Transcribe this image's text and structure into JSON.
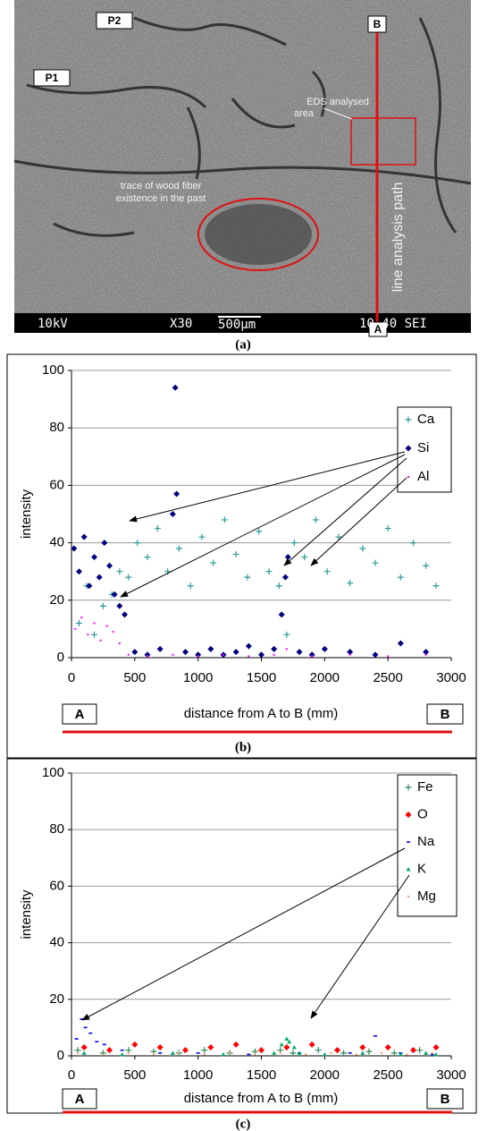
{
  "panel_a": {
    "point_labels": [
      "P2",
      "P1",
      "B",
      "A"
    ],
    "eds_label": [
      "EDS analysed",
      "area"
    ],
    "trace_label": [
      "trace of wood fiber",
      "existence in the past"
    ],
    "path_label": "line analysis path",
    "info_bar": [
      "10kV",
      "X30",
      "500µm",
      "10 40 SEI"
    ],
    "caption": "(a)"
  },
  "chart_data": [
    {
      "type": "scatter",
      "caption": "(b)",
      "xlabel": "distance from A to B (mm)",
      "ylabel": "intensity",
      "endpoint_labels": [
        "A",
        "B"
      ],
      "xlim": [
        0,
        3000
      ],
      "xticks": [
        0,
        500,
        1000,
        1500,
        2000,
        2500,
        3000
      ],
      "ylim": [
        0,
        100
      ],
      "yticks": [
        0,
        20,
        40,
        60,
        80,
        100
      ],
      "grid": true,
      "legend": "upper right",
      "series": [
        {
          "name": "Ca",
          "color": "#2e9a9a",
          "marker": "plus",
          "x": [
            60,
            120,
            180,
            250,
            320,
            380,
            450,
            520,
            600,
            680,
            760,
            850,
            940,
            1030,
            1120,
            1210,
            1300,
            1390,
            1480,
            1560,
            1640,
            1700,
            1760,
            1840,
            1930,
            2020,
            2110,
            2200,
            2300,
            2400,
            2500,
            2600,
            2700,
            2800,
            2880
          ],
          "values": [
            12,
            25,
            8,
            18,
            22,
            30,
            28,
            40,
            35,
            45,
            30,
            38,
            25,
            42,
            33,
            48,
            36,
            28,
            44,
            30,
            25,
            8,
            40,
            35,
            48,
            30,
            42,
            26,
            38,
            33,
            45,
            28,
            40,
            32,
            25
          ]
        },
        {
          "name": "Si",
          "color": "#000080",
          "marker": "diamond",
          "x": [
            20,
            60,
            100,
            140,
            180,
            220,
            260,
            300,
            340,
            380,
            420,
            500,
            600,
            700,
            800,
            820,
            830,
            900,
            1000,
            1100,
            1200,
            1300,
            1400,
            1500,
            1600,
            1660,
            1690,
            1710,
            1800,
            1900,
            2000,
            2200,
            2400,
            2600,
            2800
          ],
          "values": [
            38,
            30,
            42,
            25,
            35,
            28,
            40,
            32,
            22,
            18,
            15,
            2,
            1,
            3,
            50,
            94,
            57,
            2,
            1,
            3,
            1,
            2,
            4,
            1,
            3,
            15,
            28,
            35,
            2,
            1,
            3,
            2,
            1,
            5,
            2
          ]
        },
        {
          "name": "Al",
          "color": "#ff00ff",
          "marker": "dot",
          "x": [
            30,
            80,
            130,
            180,
            230,
            280,
            330,
            380,
            450,
            600,
            800,
            1000,
            1200,
            1400,
            1600,
            1700,
            1900,
            2200,
            2500,
            2800
          ],
          "values": [
            10,
            14,
            8,
            12,
            6,
            11,
            9,
            5,
            1,
            0.5,
            1,
            0.5,
            1,
            0.5,
            1,
            3,
            0.5,
            1,
            0.5,
            1
          ]
        }
      ]
    },
    {
      "type": "scatter",
      "caption": "(c)",
      "xlabel": "distance from A to B (mm)",
      "ylabel": "intensity",
      "endpoint_labels": [
        "A",
        "B"
      ],
      "xlim": [
        0,
        3000
      ],
      "xticks": [
        0,
        500,
        1000,
        1500,
        2000,
        2500,
        3000
      ],
      "ylim": [
        0,
        100
      ],
      "yticks": [
        0,
        20,
        40,
        60,
        80,
        100
      ],
      "grid": true,
      "legend": "upper right",
      "series": [
        {
          "name": "Fe",
          "color": "#2e8b57",
          "marker": "plus",
          "x": [
            50,
            250,
            450,
            650,
            850,
            1050,
            1250,
            1450,
            1650,
            1750,
            1950,
            2150,
            2350,
            2550,
            2750
          ],
          "values": [
            2,
            1,
            2,
            1.5,
            1,
            2,
            1,
            1.5,
            2,
            1,
            2,
            1,
            1.5,
            1,
            2
          ]
        },
        {
          "name": "O",
          "color": "#ff0000",
          "marker": "diamond",
          "x": [
            100,
            300,
            500,
            700,
            900,
            1100,
            1300,
            1500,
            1700,
            1900,
            2100,
            2300,
            2500,
            2700,
            2880
          ],
          "values": [
            3,
            2,
            4,
            3,
            2,
            3,
            4,
            2,
            3,
            4,
            2,
            3,
            3,
            2,
            3
          ]
        },
        {
          "name": "Na",
          "color": "#0000ff",
          "marker": "dash",
          "x": [
            40,
            80,
            110,
            150,
            200,
            260,
            400,
            700,
            1000,
            1400,
            1800,
            2200,
            2400,
            2600,
            2850
          ],
          "values": [
            6,
            13,
            10,
            8,
            5,
            4,
            2,
            1,
            1,
            0.5,
            1,
            1,
            7,
            1,
            0.5
          ]
        },
        {
          "name": "K",
          "color": "#00a86b",
          "marker": "triangle",
          "x": [
            100,
            400,
            800,
            1200,
            1600,
            1660,
            1700,
            1720,
            1760,
            1800,
            2000,
            2300,
            2600,
            2800,
            2880
          ],
          "values": [
            1,
            0.5,
            1,
            0.5,
            1,
            4,
            6,
            5,
            3,
            1,
            0.5,
            1,
            0.5,
            1,
            0.5
          ]
        },
        {
          "name": "Mg",
          "color": "#ff9966",
          "marker": "dot",
          "x": [
            50,
            250,
            450,
            650,
            850,
            1050,
            1250,
            1450,
            1650,
            1850,
            2050,
            2250,
            2450,
            2650,
            2850
          ],
          "values": [
            1,
            0.5,
            1,
            0.5,
            1,
            0.5,
            1,
            0.5,
            1,
            0.5,
            1,
            0.5,
            1,
            0.5,
            1
          ]
        }
      ]
    }
  ]
}
